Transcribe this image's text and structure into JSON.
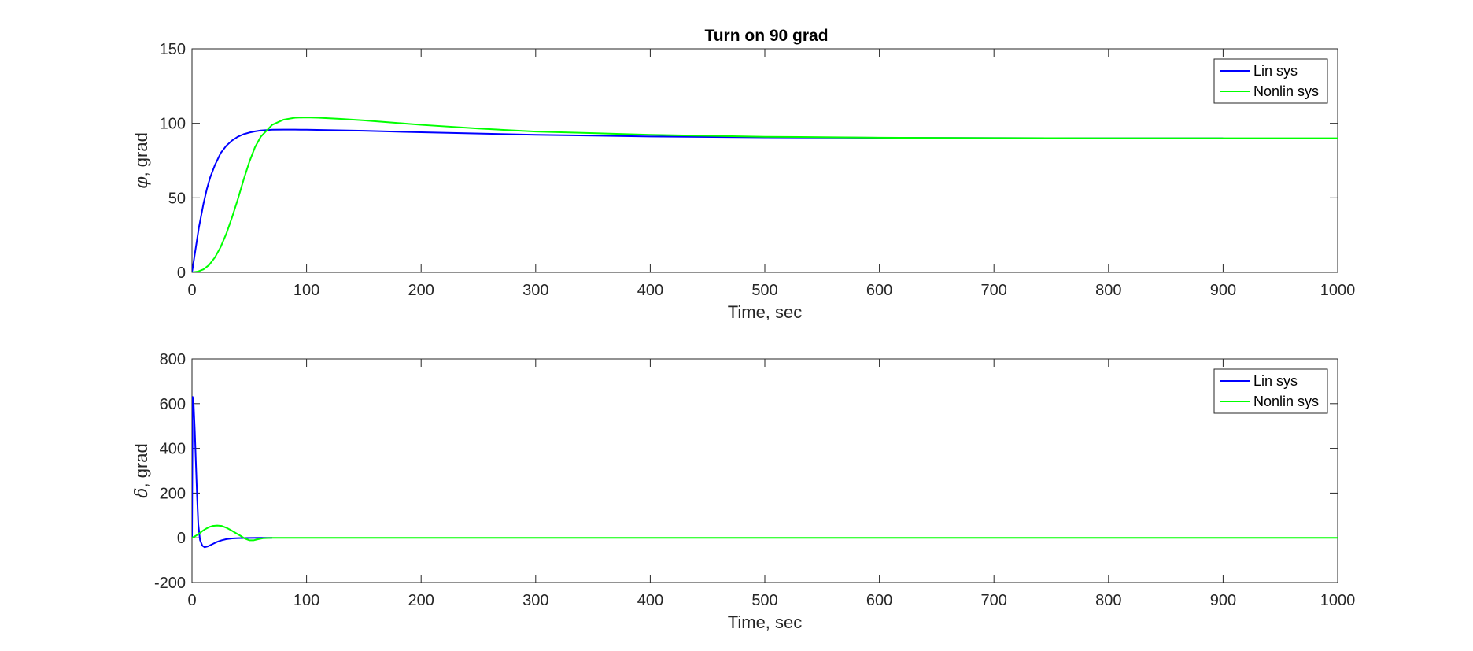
{
  "figure": {
    "title": "Turn on 90 grad"
  },
  "colors": {
    "lin": "#0000ff",
    "nonlin": "#00ff00",
    "axes": "#262626"
  },
  "chart_data": [
    {
      "type": "line",
      "title": "Turn on 90 grad",
      "xlabel": "Time, sec",
      "ylabel_symbol": "φ",
      "ylabel_text": ", grad",
      "xlim": [
        0,
        1000
      ],
      "ylim": [
        0,
        150
      ],
      "xticks": [
        0,
        100,
        200,
        300,
        400,
        500,
        600,
        700,
        800,
        900,
        1000
      ],
      "yticks": [
        0,
        50,
        100,
        150
      ],
      "grid": false,
      "legend": "top-right",
      "series": [
        {
          "name": "Lin sys",
          "color": "#0000ff",
          "x": [
            0,
            2,
            4,
            6,
            8,
            10,
            13,
            16,
            20,
            25,
            30,
            35,
            40,
            45,
            50,
            55,
            60,
            70,
            80,
            90,
            100,
            150,
            200,
            300,
            400,
            500,
            600,
            700,
            800,
            900
          ],
          "y": [
            0,
            10,
            20,
            30,
            38,
            46,
            56,
            64,
            72,
            80,
            85,
            88.5,
            91,
            92.7,
            93.8,
            94.6,
            95.2,
            95.7,
            95.8,
            95.8,
            95.7,
            95,
            94,
            92.3,
            91.2,
            90.6,
            90.3,
            90.1,
            90,
            90
          ]
        },
        {
          "name": "Nonlin sys",
          "color": "#00ff00",
          "x": [
            0,
            5,
            10,
            15,
            20,
            25,
            30,
            35,
            40,
            45,
            50,
            55,
            60,
            70,
            80,
            90,
            100,
            110,
            130,
            150,
            200,
            250,
            300,
            400,
            500,
            600,
            700,
            800,
            900,
            1000
          ],
          "y": [
            0,
            0.5,
            2,
            5,
            10,
            17,
            26,
            37,
            49,
            62,
            74,
            84,
            91,
            99,
            102.5,
            103.8,
            104,
            103.8,
            103,
            102,
            99,
            96.5,
            94.5,
            92.3,
            91,
            90.4,
            90.1,
            90,
            90,
            90
          ]
        }
      ]
    },
    {
      "type": "line",
      "title": "",
      "xlabel": "Time, sec",
      "ylabel_symbol": "δ",
      "ylabel_text": ", grad",
      "xlim": [
        0,
        1000
      ],
      "ylim": [
        -200,
        800
      ],
      "xticks": [
        0,
        100,
        200,
        300,
        400,
        500,
        600,
        700,
        800,
        900,
        1000
      ],
      "yticks": [
        -200,
        0,
        200,
        400,
        600,
        800
      ],
      "grid": false,
      "legend": "top-right",
      "series": [
        {
          "name": "Lin sys",
          "color": "#0000ff",
          "x": [
            0,
            0.6,
            1.5,
            2.5,
            3.5,
            4.5,
            5.5,
            7,
            9,
            11,
            14,
            18,
            22,
            26,
            30,
            35,
            40,
            50,
            60,
            70
          ],
          "y": [
            0,
            630,
            590,
            470,
            320,
            180,
            60,
            -10,
            -35,
            -42,
            -38,
            -28,
            -18,
            -11,
            -6,
            -3,
            -1.5,
            -0.5,
            0,
            0
          ]
        },
        {
          "name": "Nonlin sys",
          "color": "#00ff00",
          "x": [
            0,
            3,
            6,
            9,
            12,
            15,
            18,
            22,
            26,
            30,
            34,
            38,
            42,
            46,
            50,
            54,
            58,
            62,
            70,
            80,
            100,
            200,
            400,
            600,
            800,
            1000
          ],
          "y": [
            0,
            8,
            18,
            30,
            40,
            48,
            53,
            55,
            53,
            45,
            34,
            22,
            10,
            -3,
            -11,
            -11,
            -6,
            -2,
            0,
            0,
            0,
            0,
            0,
            0,
            0,
            0
          ]
        }
      ]
    }
  ]
}
